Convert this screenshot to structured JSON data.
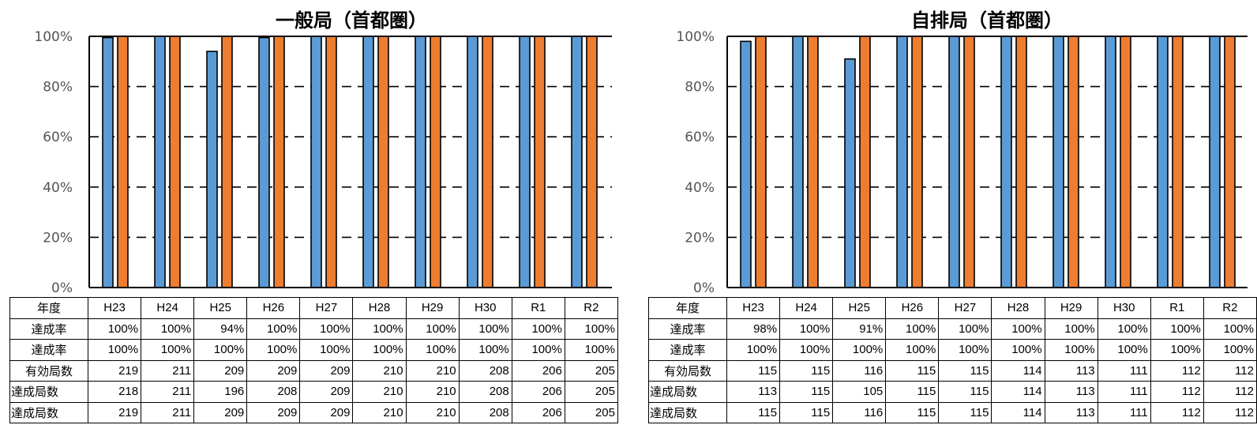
{
  "colors": {
    "series1": "#5b9bd5",
    "series2": "#ed7d31",
    "grid": "#000000",
    "tick": "#555555"
  },
  "chart_data": [
    {
      "type": "bar",
      "title": "一般局（首都圏）",
      "categories": [
        "H23",
        "H24",
        "H25",
        "H26",
        "H27",
        "H28",
        "H29",
        "H30",
        "R1",
        "R2"
      ],
      "ylim": [
        0,
        100
      ],
      "yticks": [
        "0%",
        "20%",
        "40%",
        "60%",
        "80%",
        "100%"
      ],
      "gridlines": "dashed",
      "series": [
        {
          "values": [
            99.5,
            100,
            94,
            99.5,
            100,
            100,
            100,
            100,
            100,
            100
          ]
        },
        {
          "values": [
            100,
            100,
            100,
            100,
            100,
            100,
            100,
            100,
            100,
            100
          ]
        }
      ],
      "table": {
        "header": "年度",
        "rows": [
          {
            "label": "達成率",
            "values": [
              "100%",
              "100%",
              "94%",
              "100%",
              "100%",
              "100%",
              "100%",
              "100%",
              "100%",
              "100%"
            ]
          },
          {
            "label": "達成率",
            "values": [
              "100%",
              "100%",
              "100%",
              "100%",
              "100%",
              "100%",
              "100%",
              "100%",
              "100%",
              "100%"
            ]
          },
          {
            "label": "有効局数",
            "values": [
              "219",
              "211",
              "209",
              "209",
              "209",
              "210",
              "210",
              "208",
              "206",
              "205"
            ]
          },
          {
            "label": "達成局数",
            "values": [
              "218",
              "211",
              "196",
              "208",
              "209",
              "210",
              "210",
              "208",
              "206",
              "205"
            ]
          },
          {
            "label": "達成局数",
            "values": [
              "219",
              "211",
              "209",
              "209",
              "209",
              "210",
              "210",
              "208",
              "206",
              "205"
            ]
          }
        ]
      }
    },
    {
      "type": "bar",
      "title": "自排局（首都圏）",
      "categories": [
        "H23",
        "H24",
        "H25",
        "H26",
        "H27",
        "H28",
        "H29",
        "H30",
        "R1",
        "R2"
      ],
      "ylim": [
        0,
        100
      ],
      "yticks": [
        "0%",
        "20%",
        "40%",
        "60%",
        "80%",
        "100%"
      ],
      "gridlines": "dashed",
      "series": [
        {
          "values": [
            98,
            100,
            91,
            100,
            100,
            100,
            100,
            100,
            100,
            100
          ]
        },
        {
          "values": [
            100,
            100,
            100,
            100,
            100,
            100,
            100,
            100,
            100,
            100
          ]
        }
      ],
      "table": {
        "header": "年度",
        "rows": [
          {
            "label": "達成率",
            "values": [
              "98%",
              "100%",
              "91%",
              "100%",
              "100%",
              "100%",
              "100%",
              "100%",
              "100%",
              "100%"
            ]
          },
          {
            "label": "達成率",
            "values": [
              "100%",
              "100%",
              "100%",
              "100%",
              "100%",
              "100%",
              "100%",
              "100%",
              "100%",
              "100%"
            ]
          },
          {
            "label": "有効局数",
            "values": [
              "115",
              "115",
              "116",
              "115",
              "115",
              "114",
              "113",
              "111",
              "112",
              "112"
            ]
          },
          {
            "label": "達成局数",
            "values": [
              "113",
              "115",
              "105",
              "115",
              "115",
              "114",
              "113",
              "111",
              "112",
              "112"
            ]
          },
          {
            "label": "達成局数",
            "values": [
              "115",
              "115",
              "116",
              "115",
              "115",
              "114",
              "113",
              "111",
              "112",
              "112"
            ]
          }
        ]
      }
    }
  ]
}
